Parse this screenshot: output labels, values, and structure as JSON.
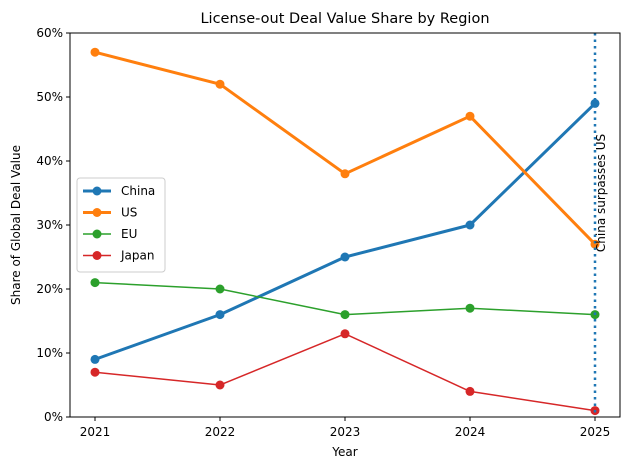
{
  "chart_data": {
    "type": "line",
    "title": "License-out Deal Value Share by Region",
    "xlabel": "Year",
    "ylabel": "Share of Global Deal Value",
    "x": [
      2021,
      2022,
      2023,
      2024,
      2025
    ],
    "x_tick_labels": [
      "2021",
      "2022",
      "2023",
      "2024",
      "2025"
    ],
    "ylim": [
      0,
      60
    ],
    "y_ticks": [
      0,
      10,
      20,
      30,
      40,
      50,
      60
    ],
    "y_tick_labels": [
      "0%",
      "10%",
      "20%",
      "30%",
      "40%",
      "50%",
      "60%"
    ],
    "grid": false,
    "legend_position": "center-left",
    "series": [
      {
        "name": "China",
        "values": [
          9,
          16,
          25,
          30,
          49
        ],
        "color": "#1f77b4",
        "emphasis": "bold"
      },
      {
        "name": "US",
        "values": [
          57,
          52,
          38,
          47,
          27
        ],
        "color": "#ff7f0e",
        "emphasis": "bold"
      },
      {
        "name": "EU",
        "values": [
          21,
          20,
          16,
          17,
          16
        ],
        "color": "#2ca02c",
        "emphasis": "normal"
      },
      {
        "name": "Japan",
        "values": [
          7,
          5,
          13,
          4,
          1
        ],
        "color": "#d62728",
        "emphasis": "normal"
      }
    ],
    "annotations": [
      {
        "text": "China surpasses US",
        "x": 2025,
        "line_style": "dotted",
        "color": "#1f77b4"
      }
    ]
  }
}
